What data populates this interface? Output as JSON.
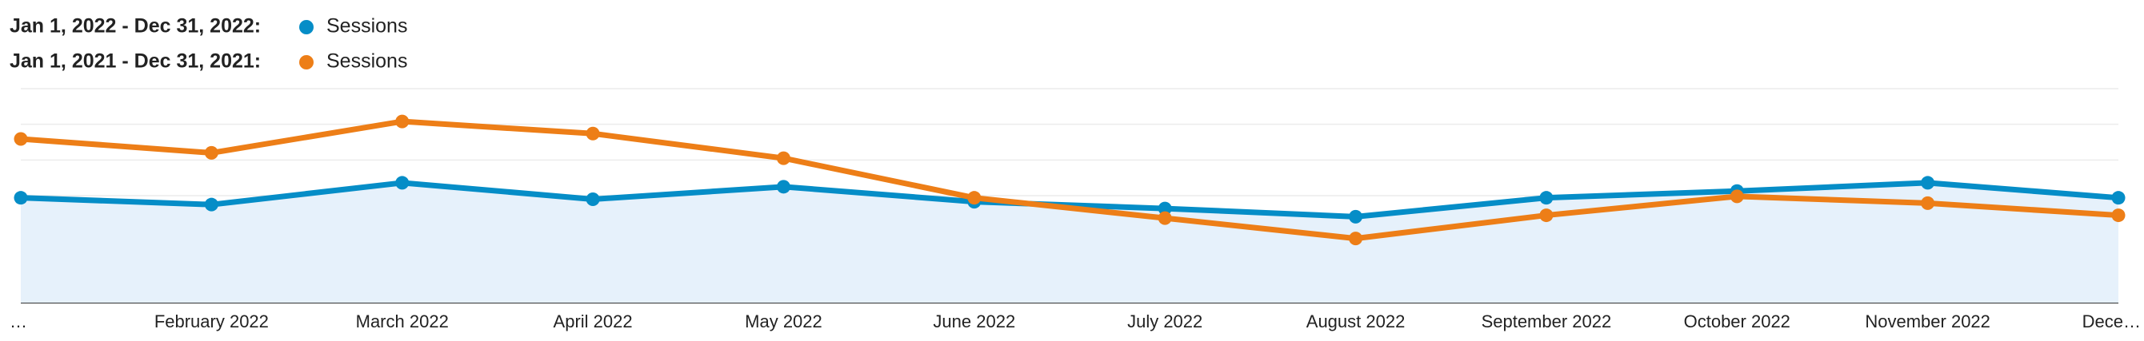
{
  "chart_data": {
    "type": "line",
    "categories": [
      "…",
      "February 2022",
      "March 2022",
      "April 2022",
      "May 2022",
      "June 2022",
      "July 2022",
      "August 2022",
      "September 2022",
      "October 2022",
      "November 2022",
      "Dece…"
    ],
    "series": [
      {
        "period": "Jan 1, 2022 - Dec 31, 2022:",
        "name": "Sessions",
        "color": "#058dc7",
        "fill": true,
        "values": [
          29.4,
          27.5,
          33.6,
          29.0,
          32.5,
          28.3,
          26.4,
          24.1,
          29.4,
          31.3,
          33.6,
          29.4
        ]
      },
      {
        "period": "Jan 1, 2021 - Dec 31, 2021:",
        "name": "Sessions",
        "color": "#ed7e17",
        "fill": false,
        "values": [
          45.9,
          42.0,
          50.8,
          47.4,
          40.5,
          29.4,
          23.7,
          18.0,
          24.5,
          29.8,
          27.9,
          24.5
        ]
      }
    ],
    "ylim": [
      0,
      60
    ],
    "yticks": [
      0,
      10,
      20,
      30,
      40,
      50,
      60
    ],
    "grid": true
  }
}
